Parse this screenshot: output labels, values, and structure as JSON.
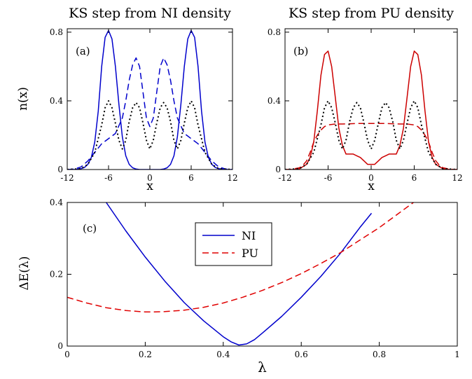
{
  "chart_data": [
    {
      "type": "line",
      "panel_label": "(a)",
      "title": "KS step from NI density",
      "xlabel": "x",
      "ylabel": "n(x)",
      "xlim": [
        -12,
        12
      ],
      "ylim": [
        0,
        0.82
      ],
      "xticks": [
        "-12",
        "-6",
        "0",
        "6",
        "12"
      ],
      "yticks": [
        "0",
        "0.4",
        "0.8"
      ],
      "series": [
        {
          "style": "solid",
          "color": "#0000cc",
          "x": [
            -12,
            -11,
            -10,
            -9.5,
            -9,
            -8.5,
            -8,
            -7.5,
            -7,
            -6.5,
            -6,
            -5.5,
            -5,
            -4.5,
            -4,
            -3.5,
            -3,
            -2.5,
            -2,
            -1.5,
            -1,
            0,
            1,
            1.5,
            2,
            2.5,
            3,
            3.5,
            4,
            4.5,
            5,
            5.5,
            6,
            6.5,
            7,
            7.5,
            8,
            8.5,
            9,
            9.5,
            10,
            11,
            12
          ],
          "y": [
            0,
            0,
            0.005,
            0.012,
            0.03,
            0.07,
            0.16,
            0.34,
            0.6,
            0.77,
            0.81,
            0.76,
            0.6,
            0.38,
            0.19,
            0.08,
            0.03,
            0.01,
            0.003,
            0,
            0,
            0,
            0,
            0,
            0.003,
            0.01,
            0.03,
            0.08,
            0.19,
            0.38,
            0.6,
            0.76,
            0.81,
            0.77,
            0.6,
            0.34,
            0.16,
            0.07,
            0.03,
            0.012,
            0.005,
            0,
            0
          ]
        },
        {
          "style": "dashed",
          "color": "#0000cc",
          "x": [
            -12,
            -11,
            -10,
            -9,
            -8,
            -7,
            -6,
            -5,
            -4,
            -3.5,
            -3,
            -2.5,
            -2,
            -1.5,
            -1,
            -0.5,
            0,
            0.5,
            1,
            1.5,
            2,
            2.5,
            3,
            3.5,
            4,
            5,
            6,
            7,
            8,
            9,
            10,
            11,
            12
          ],
          "y": [
            0,
            0.003,
            0.015,
            0.05,
            0.1,
            0.15,
            0.18,
            0.21,
            0.3,
            0.4,
            0.52,
            0.61,
            0.65,
            0.6,
            0.45,
            0.3,
            0.25,
            0.3,
            0.45,
            0.6,
            0.65,
            0.61,
            0.52,
            0.4,
            0.3,
            0.21,
            0.18,
            0.15,
            0.1,
            0.05,
            0.015,
            0.003,
            0
          ]
        },
        {
          "style": "dotted",
          "color": "#000000",
          "x": [
            -12,
            -10,
            -9,
            -8,
            -7,
            -6.5,
            -6,
            -5.5,
            -5,
            -4.5,
            -4,
            -3.5,
            -3,
            -2.5,
            -2,
            -1.5,
            -1,
            -0.5,
            0,
            0.5,
            1,
            1.5,
            2,
            2.5,
            3,
            3.5,
            4,
            4.5,
            5,
            5.5,
            6,
            6.5,
            7,
            8,
            9,
            10,
            12
          ],
          "y": [
            0,
            0.005,
            0.03,
            0.1,
            0.26,
            0.36,
            0.4,
            0.36,
            0.27,
            0.17,
            0.12,
            0.17,
            0.28,
            0.36,
            0.39,
            0.36,
            0.27,
            0.17,
            0.12,
            0.17,
            0.27,
            0.36,
            0.39,
            0.36,
            0.28,
            0.17,
            0.12,
            0.17,
            0.27,
            0.36,
            0.4,
            0.36,
            0.26,
            0.1,
            0.03,
            0.005,
            0
          ]
        }
      ]
    },
    {
      "type": "line",
      "panel_label": "(b)",
      "title": "KS step from PU density",
      "xlabel": "x",
      "ylabel": "",
      "xlim": [
        -12,
        12
      ],
      "ylim": [
        0,
        0.82
      ],
      "xticks": [
        "-12",
        "-6",
        "0",
        "6",
        "12"
      ],
      "yticks": [
        "0",
        "0.4",
        "0.8"
      ],
      "series": [
        {
          "style": "solid",
          "color": "#cc0000",
          "x": [
            -12,
            -11,
            -10,
            -9,
            -8.5,
            -8,
            -7.5,
            -7,
            -6.5,
            -6,
            -5.5,
            -5,
            -4.5,
            -4,
            -3.5,
            -3,
            -2.5,
            -2,
            -1.5,
            -1,
            -0.5,
            0,
            0.5,
            1,
            1.5,
            2,
            2.5,
            3,
            3.5,
            4,
            4.5,
            5,
            5.5,
            6,
            6.5,
            7,
            7.5,
            8,
            8.5,
            9,
            10,
            11,
            12
          ],
          "y": [
            0,
            0,
            0.004,
            0.03,
            0.07,
            0.16,
            0.34,
            0.55,
            0.67,
            0.69,
            0.6,
            0.42,
            0.24,
            0.14,
            0.09,
            0.09,
            0.09,
            0.08,
            0.07,
            0.05,
            0.03,
            0.03,
            0.03,
            0.05,
            0.07,
            0.08,
            0.09,
            0.09,
            0.09,
            0.14,
            0.24,
            0.42,
            0.6,
            0.69,
            0.67,
            0.55,
            0.34,
            0.16,
            0.07,
            0.03,
            0.004,
            0,
            0
          ]
        },
        {
          "style": "dashed",
          "color": "#cc0000",
          "x": [
            -12,
            -11,
            -10,
            -9.5,
            -9,
            -8.5,
            -8,
            -7.5,
            -7,
            -6.5,
            -6,
            -5,
            -4,
            -2,
            0,
            2,
            4,
            5,
            6,
            6.5,
            7,
            7.5,
            8,
            8.5,
            9,
            9.5,
            10,
            11,
            12
          ],
          "y": [
            0,
            0.002,
            0.01,
            0.025,
            0.05,
            0.1,
            0.16,
            0.2,
            0.23,
            0.25,
            0.26,
            0.265,
            0.265,
            0.268,
            0.268,
            0.268,
            0.265,
            0.265,
            0.26,
            0.25,
            0.23,
            0.2,
            0.16,
            0.1,
            0.05,
            0.025,
            0.01,
            0.002,
            0
          ]
        },
        {
          "style": "dotted",
          "color": "#000000",
          "x": [
            -12,
            -10,
            -9,
            -8,
            -7,
            -6.5,
            -6,
            -5.5,
            -5,
            -4.5,
            -4,
            -3.5,
            -3,
            -2.5,
            -2,
            -1.5,
            -1,
            -0.5,
            0,
            0.5,
            1,
            1.5,
            2,
            2.5,
            3,
            3.5,
            4,
            4.5,
            5,
            5.5,
            6,
            6.5,
            7,
            8,
            9,
            10,
            12
          ],
          "y": [
            0,
            0.005,
            0.03,
            0.1,
            0.26,
            0.36,
            0.4,
            0.36,
            0.27,
            0.17,
            0.12,
            0.17,
            0.28,
            0.36,
            0.39,
            0.36,
            0.27,
            0.17,
            0.12,
            0.17,
            0.27,
            0.36,
            0.39,
            0.36,
            0.28,
            0.17,
            0.12,
            0.17,
            0.27,
            0.36,
            0.4,
            0.36,
            0.26,
            0.1,
            0.03,
            0.005,
            0
          ]
        }
      ]
    },
    {
      "type": "line",
      "panel_label": "(c)",
      "title": "",
      "xlabel": "λ",
      "ylabel": "ΔE(λ)",
      "xlim": [
        0,
        1
      ],
      "ylim": [
        0,
        0.4
      ],
      "xticks": [
        "0",
        "0.2",
        "0.4",
        "0.6",
        "0.8",
        "1"
      ],
      "yticks": [
        "0",
        "0.2",
        "0.4"
      ],
      "legend_placement": "upper-center",
      "series": [
        {
          "name": "NI",
          "style": "solid",
          "color": "#0000cc",
          "x": [
            0.05,
            0.1,
            0.15,
            0.2,
            0.25,
            0.3,
            0.35,
            0.4,
            0.42,
            0.44,
            0.46,
            0.48,
            0.5,
            0.55,
            0.6,
            0.65,
            0.7,
            0.75,
            0.78
          ],
          "y": [
            0.48,
            0.4,
            0.321,
            0.248,
            0.181,
            0.121,
            0.07,
            0.026,
            0.012,
            0.003,
            0.006,
            0.018,
            0.036,
            0.083,
            0.136,
            0.194,
            0.258,
            0.33,
            0.37
          ]
        },
        {
          "name": "PU",
          "style": "dashed",
          "color": "#e00000",
          "x": [
            0,
            0.05,
            0.1,
            0.15,
            0.2,
            0.22,
            0.25,
            0.3,
            0.35,
            0.4,
            0.45,
            0.5,
            0.55,
            0.6,
            0.65,
            0.7,
            0.75,
            0.8,
            0.85,
            0.9
          ],
          "y": [
            0.136,
            0.12,
            0.107,
            0.099,
            0.095,
            0.095,
            0.096,
            0.1,
            0.108,
            0.12,
            0.136,
            0.155,
            0.177,
            0.202,
            0.23,
            0.26,
            0.295,
            0.33,
            0.37,
            0.41
          ]
        }
      ]
    }
  ]
}
